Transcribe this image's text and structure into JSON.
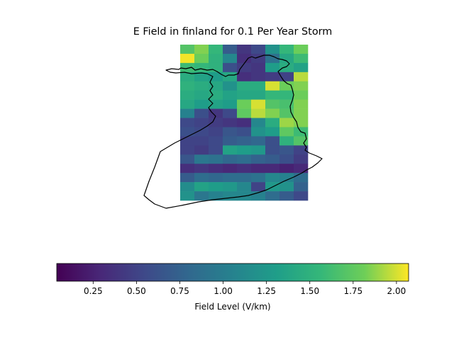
{
  "chart_data": {
    "type": "heatmap",
    "title": "E Field in finland for 0.1 Per Year Storm",
    "colorbar": {
      "label": "Field Level (V/km)",
      "range": [
        0.04,
        2.07
      ],
      "ticks": [
        "0.25",
        "0.50",
        "0.75",
        "1.00",
        "1.25",
        "1.50",
        "1.75",
        "2.00"
      ],
      "tick_values": [
        0.25,
        0.5,
        0.75,
        1.0,
        1.25,
        1.5,
        1.75,
        2.0
      ],
      "colormap": "viridis"
    },
    "grid": {
      "rows": 11,
      "cols": 9
    },
    "values": [
      [
        1.7,
        1.85,
        1.55,
        0.7,
        0.4,
        0.55,
        1.2,
        1.55,
        1.8
      ],
      [
        2.05,
        1.8,
        1.5,
        1.1,
        0.35,
        0.45,
        0.9,
        1.4,
        1.6
      ],
      [
        1.6,
        1.55,
        1.5,
        0.6,
        0.45,
        0.4,
        1.3,
        1.45,
        1.35
      ],
      [
        1.45,
        1.35,
        1.3,
        1.4,
        0.35,
        0.4,
        0.45,
        0.5,
        1.95
      ],
      [
        1.5,
        1.45,
        1.4,
        1.2,
        1.45,
        1.45,
        2.0,
        1.8,
        1.85
      ],
      [
        1.45,
        1.4,
        1.45,
        1.35,
        1.4,
        1.4,
        1.55,
        1.55,
        1.8
      ],
      [
        1.4,
        1.3,
        1.35,
        1.3,
        1.8,
        2.0,
        1.7,
        1.65,
        1.85
      ],
      [
        1.05,
        0.6,
        0.4,
        0.55,
        1.75,
        1.95,
        1.85,
        1.7,
        1.85
      ],
      [
        0.55,
        0.5,
        0.45,
        0.4,
        0.35,
        1.1,
        1.45,
        1.9,
        1.85
      ],
      [
        0.6,
        0.55,
        0.5,
        0.65,
        0.6,
        1.2,
        1.3,
        1.75,
        1.6
      ],
      [
        0.5,
        0.5,
        0.55,
        0.7,
        0.75,
        0.8,
        0.6,
        1.5,
        1.7
      ]
    ],
    "bottom_values": [
      [
        0.5,
        0.45,
        0.55,
        1.35,
        1.3,
        1.25,
        0.6,
        0.65,
        0.5
      ],
      [
        0.65,
        0.95,
        0.9,
        0.8,
        0.85,
        0.75,
        0.7,
        0.6,
        0.45
      ],
      [
        0.35,
        0.4,
        0.35,
        0.3,
        0.35,
        0.3,
        0.3,
        0.25,
        0.3
      ],
      [
        0.7,
        0.85,
        0.8,
        0.85,
        0.85,
        0.9,
        1.1,
        1.05,
        0.85
      ],
      [
        1.15,
        1.35,
        1.3,
        1.25,
        1.1,
        0.5,
        1.25,
        1.2,
        0.75
      ],
      [
        1.2,
        0.95,
        1.05,
        1.1,
        1.1,
        1.05,
        0.85,
        0.7,
        0.55
      ]
    ],
    "overlay": "Finland country outline"
  }
}
